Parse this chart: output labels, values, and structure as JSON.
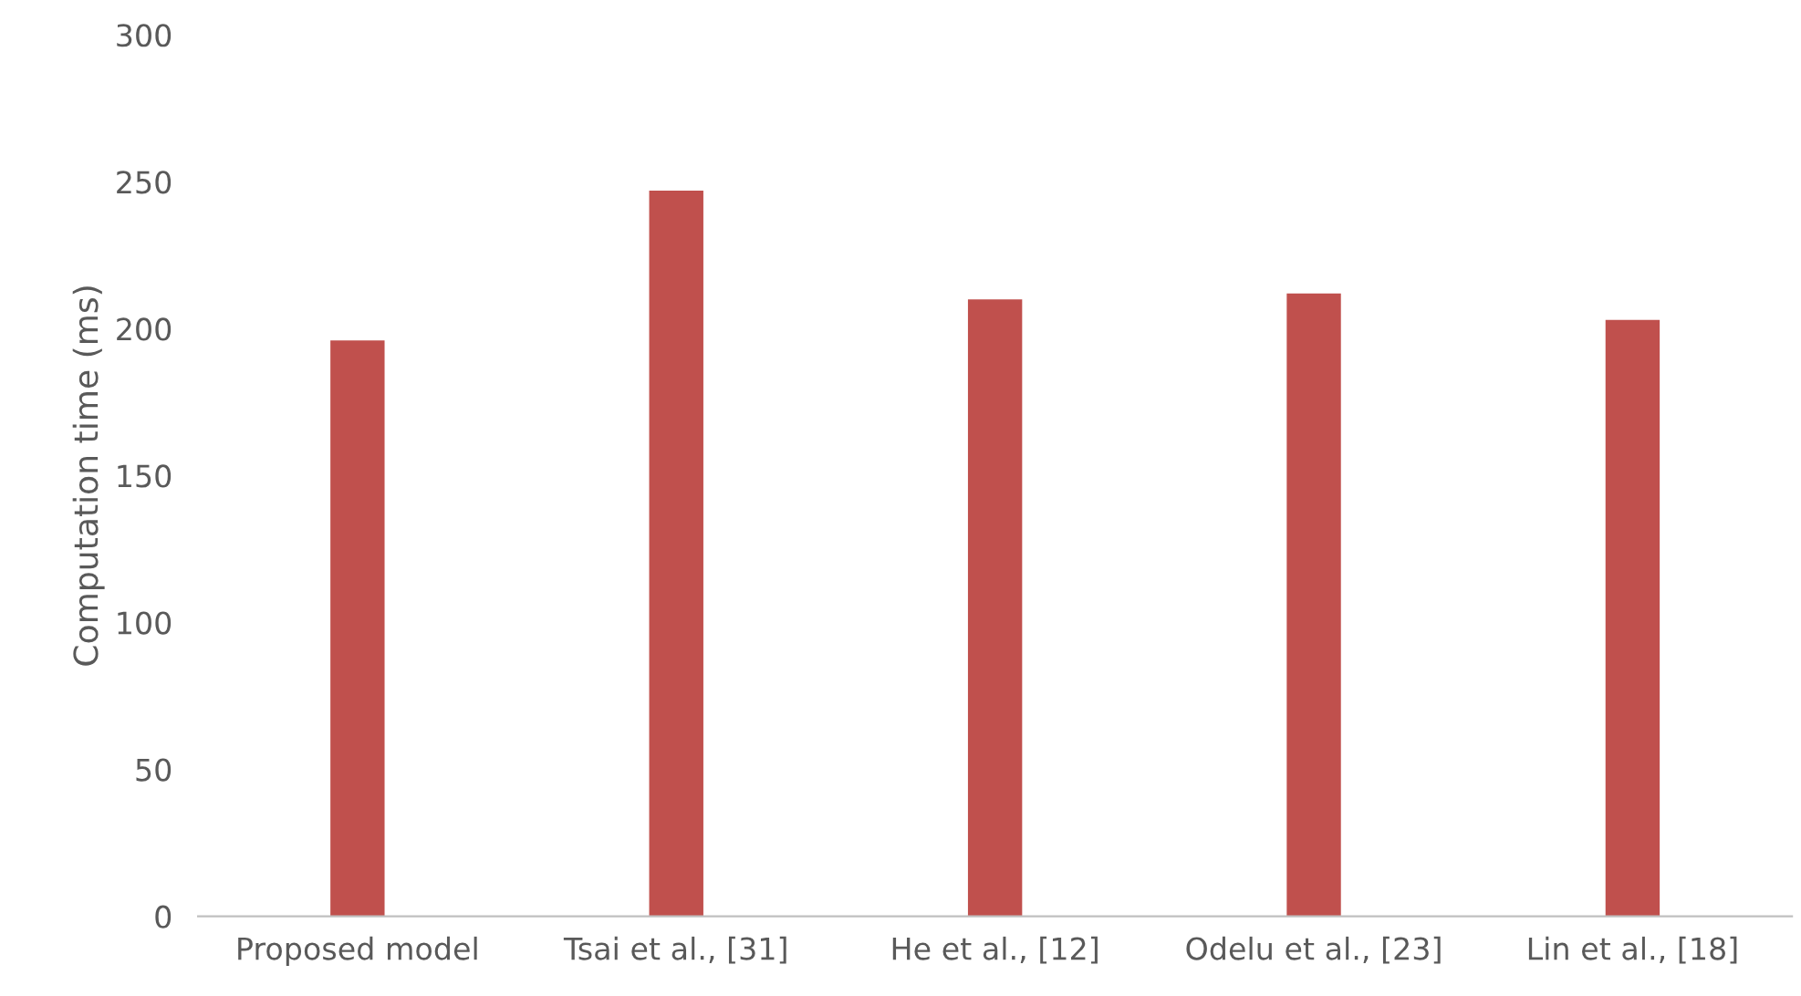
{
  "chart_data": {
    "type": "bar",
    "ylabel": "Computation time (ms)",
    "categories": [
      "Proposed model",
      "Tsai et al., [31]",
      "He et al., [12]",
      "Odelu et al., [23]",
      "Lin et al., [18]"
    ],
    "values": [
      196,
      247,
      210,
      212,
      203
    ],
    "color": "#c0504d",
    "ylim": [
      0,
      300
    ],
    "yticks": [
      0,
      50,
      100,
      150,
      200,
      250,
      300
    ],
    "grid": false,
    "legend": false
  }
}
